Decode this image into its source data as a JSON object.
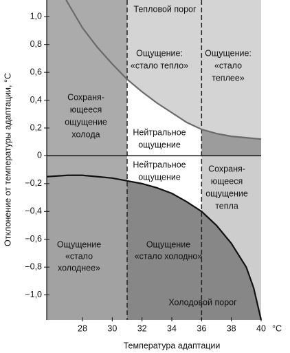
{
  "chart_data": {
    "type": "line",
    "xlabel": "Температура адаптации",
    "xunit": "°C",
    "ylabel": "Отклонение от температуры адаптации, °С",
    "xlim": [
      25.6,
      40
    ],
    "xticks": [
      28,
      30,
      32,
      34,
      36,
      38,
      40
    ],
    "ylim": [
      -1.18,
      1.12
    ],
    "yticks": [
      {
        "value": 1,
        "label": "1,0"
      },
      {
        "value": 0.8,
        "label": "0,8"
      },
      {
        "value": 0.6,
        "label": "0,6"
      },
      {
        "value": 0.4,
        "label": "0,4"
      },
      {
        "value": 0.2,
        "label": "0,2"
      },
      0,
      {
        "value": -0.2,
        "label": "−0,2"
      },
      {
        "value": -0.4,
        "label": "−0,4"
      },
      {
        "value": -0.6,
        "label": "−0,6"
      },
      {
        "value": -0.8,
        "label": "−0,8"
      },
      {
        "value": -1,
        "label": "−1,0"
      }
    ],
    "boundaries": [
      31,
      36
    ],
    "series": [
      {
        "name": "Тепловой порог",
        "color": "#6a6a6a",
        "x": [
          26.9,
          28,
          29,
          30,
          31,
          32,
          33,
          34,
          35,
          36,
          37,
          38,
          39,
          40
        ],
        "values": [
          1.12,
          0.92,
          0.78,
          0.66,
          0.55,
          0.46,
          0.38,
          0.31,
          0.24,
          0.19,
          0.16,
          0.14,
          0.13,
          0.12
        ]
      },
      {
        "name": "Холодовой порог",
        "color": "#111111",
        "x": [
          25.6,
          27,
          28,
          29,
          30,
          31,
          32,
          33,
          34,
          35,
          36,
          37,
          38,
          39,
          39.5,
          40
        ],
        "values": [
          -0.15,
          -0.14,
          -0.14,
          -0.15,
          -0.16,
          -0.18,
          -0.2,
          -0.23,
          -0.27,
          -0.33,
          -0.4,
          -0.5,
          -0.63,
          -0.8,
          -0.95,
          -1.18
        ]
      }
    ],
    "annotations": [
      [
        "Ощущение:",
        "«стало тепло»"
      ],
      [
        "Ощущение:",
        "«стало",
        "теплее»"
      ],
      [
        "Сохраня-",
        "ющееся",
        "ощущение",
        "холода"
      ],
      [
        "Нейтральное",
        "ощущение"
      ],
      [
        "Нейтральное",
        "ощущение"
      ],
      [
        "Сохраня-",
        "ющееся",
        "ощущение",
        "тепла"
      ],
      [
        "Ощущение",
        "«стало",
        "холоднее»"
      ],
      [
        "Ощущение",
        "«стало холодно»"
      ]
    ]
  }
}
